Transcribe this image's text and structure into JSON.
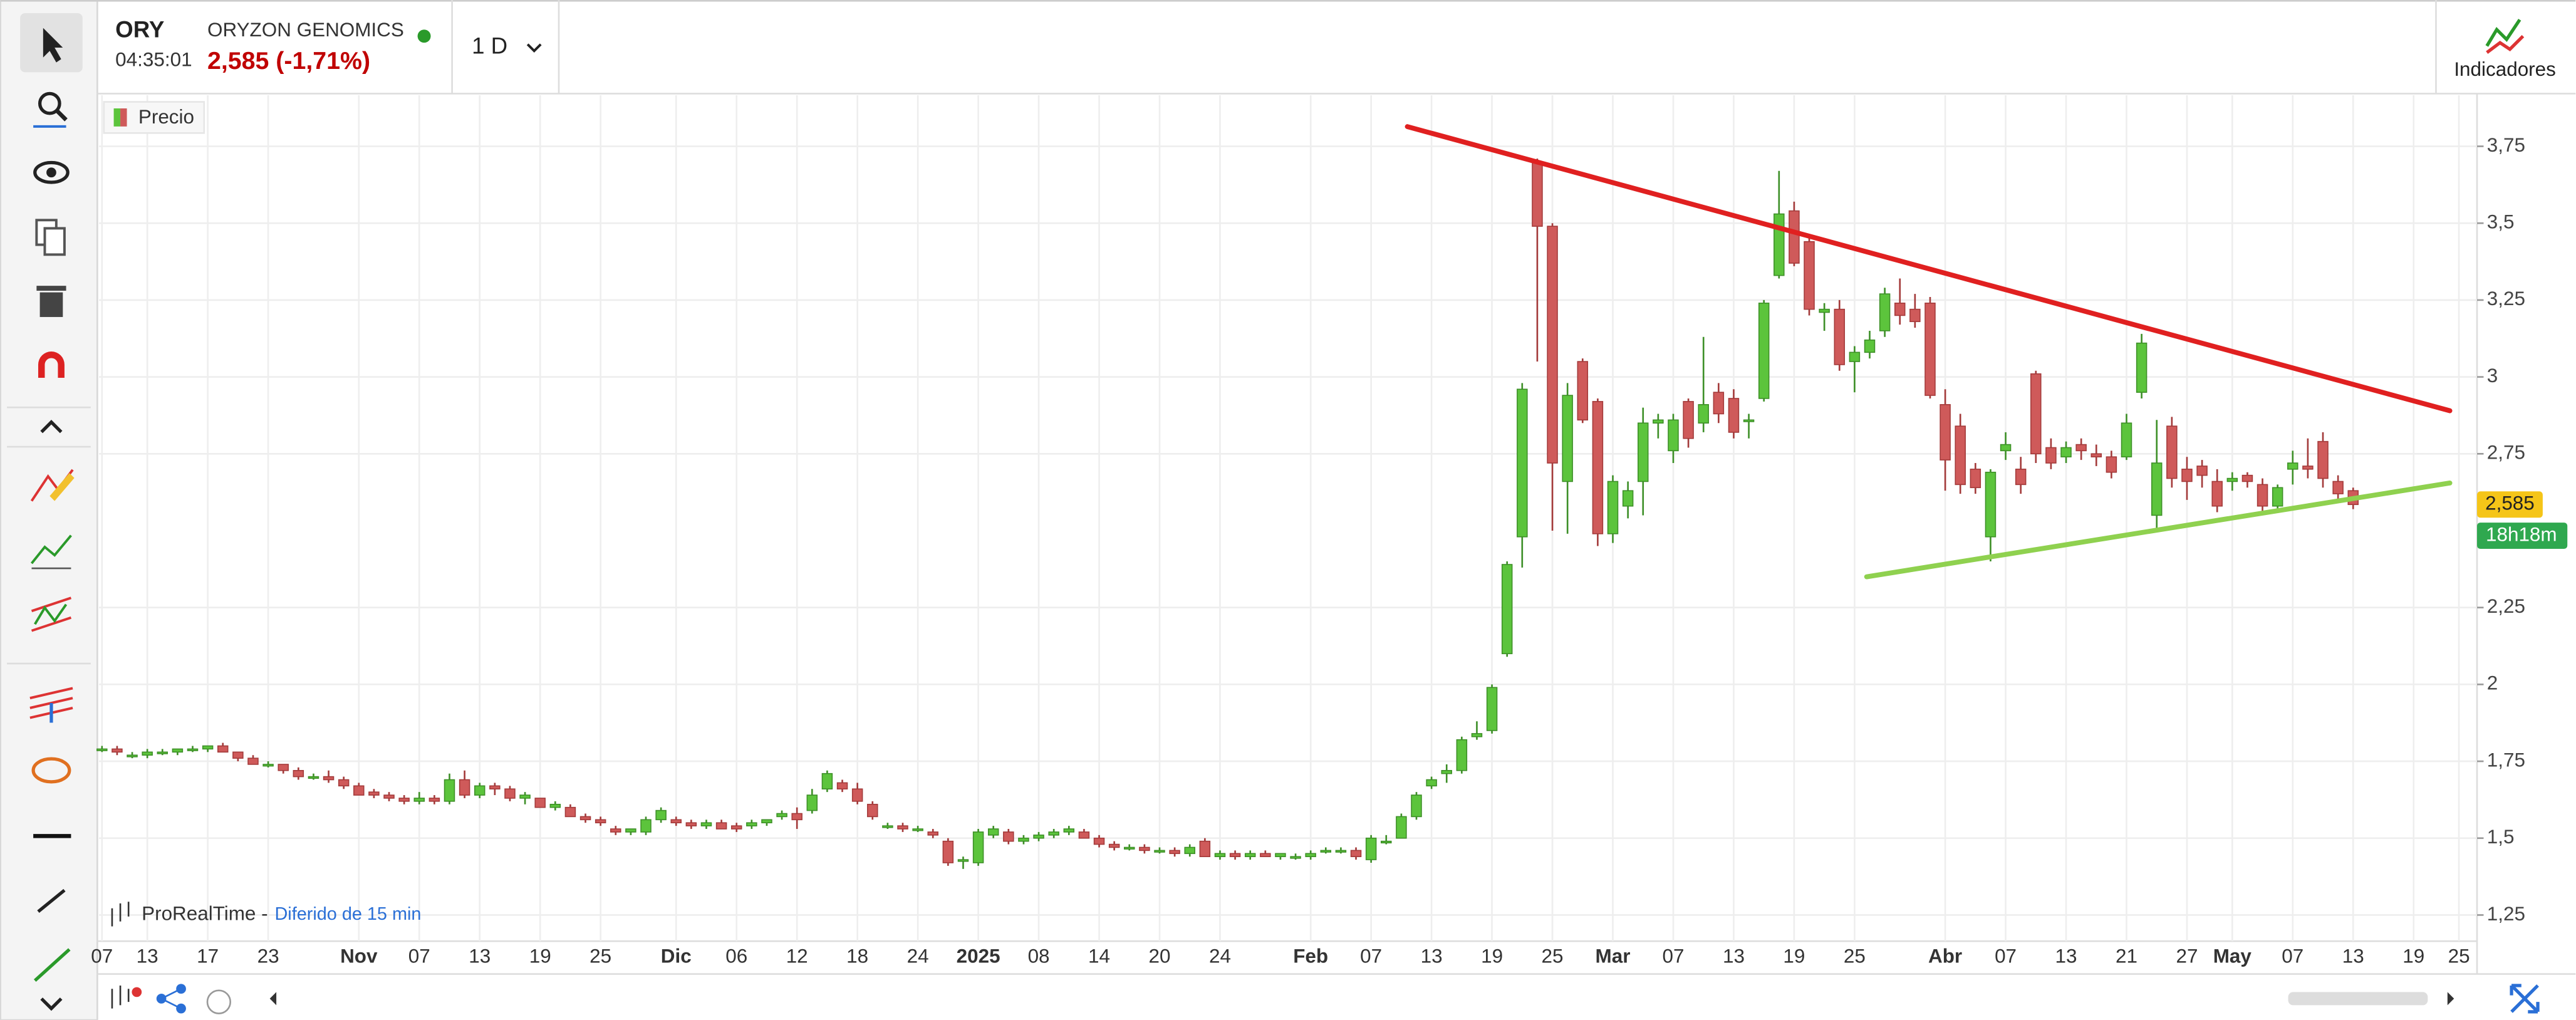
{
  "ui": {
    "symbol": "ORY",
    "time": "04:35:01",
    "company": "ORYZON GENOMICS",
    "quote": "2,585 (-1,71%)",
    "timeframe": "1 D",
    "indicators": "Indicadores",
    "brand": "ProRealTime -",
    "delay": "Diferido de 15 min"
  },
  "chart_data": {
    "type": "candlestick",
    "legend": "Precio",
    "up_color": "#5cc43c",
    "down_color": "#cf5a5a",
    "categories": [
      "07",
      null,
      null,
      "13",
      null,
      null,
      null,
      "17",
      null,
      null,
      null,
      "23",
      null,
      null,
      null,
      null,
      null,
      "Nov",
      null,
      null,
      null,
      "07",
      null,
      null,
      null,
      "13",
      null,
      null,
      null,
      "19",
      null,
      null,
      null,
      "25",
      null,
      null,
      null,
      null,
      "Dic",
      null,
      null,
      null,
      "06",
      null,
      null,
      null,
      "12",
      null,
      null,
      null,
      "18",
      null,
      null,
      null,
      "24",
      null,
      null,
      null,
      "2025",
      null,
      null,
      null,
      "08",
      null,
      null,
      null,
      "14",
      null,
      null,
      null,
      "20",
      null,
      null,
      null,
      "24",
      null,
      null,
      null,
      null,
      null,
      "Feb",
      null,
      null,
      null,
      "07",
      null,
      null,
      null,
      "13",
      null,
      null,
      null,
      "19",
      null,
      null,
      null,
      "25",
      null,
      null,
      null,
      "Mar",
      null,
      null,
      null,
      "07",
      null,
      null,
      null,
      "13",
      null,
      null,
      null,
      "19",
      null,
      null,
      null,
      "25",
      null,
      null,
      null,
      null,
      null,
      "Abr",
      null,
      null,
      null,
      "07",
      null,
      null,
      null,
      "13",
      null,
      null,
      null,
      "21",
      null,
      null,
      null,
      "27",
      null,
      null,
      "May",
      null,
      null,
      null,
      "07",
      null,
      null,
      null,
      "13",
      null,
      null,
      null,
      "19",
      null,
      null,
      "25"
    ],
    "ohlc": [
      [
        1.79,
        1.8,
        1.78,
        1.79
      ],
      [
        1.79,
        1.8,
        1.77,
        1.78
      ],
      [
        1.77,
        1.78,
        1.76,
        1.77
      ],
      [
        1.77,
        1.79,
        1.76,
        1.78
      ],
      [
        1.78,
        1.79,
        1.77,
        1.78
      ],
      [
        1.78,
        1.79,
        1.77,
        1.79
      ],
      [
        1.79,
        1.8,
        1.78,
        1.79
      ],
      [
        1.79,
        1.8,
        1.78,
        1.8
      ],
      [
        1.8,
        1.81,
        1.78,
        1.78
      ],
      [
        1.78,
        1.78,
        1.75,
        1.76
      ],
      [
        1.76,
        1.77,
        1.74,
        1.74
      ],
      [
        1.74,
        1.75,
        1.73,
        1.74
      ],
      [
        1.74,
        1.74,
        1.71,
        1.72
      ],
      [
        1.72,
        1.73,
        1.69,
        1.7
      ],
      [
        1.7,
        1.71,
        1.69,
        1.7
      ],
      [
        1.7,
        1.72,
        1.68,
        1.69
      ],
      [
        1.69,
        1.7,
        1.66,
        1.67
      ],
      [
        1.67,
        1.68,
        1.64,
        1.64
      ],
      [
        1.65,
        1.66,
        1.63,
        1.64
      ],
      [
        1.64,
        1.65,
        1.62,
        1.63
      ],
      [
        1.63,
        1.64,
        1.61,
        1.62
      ],
      [
        1.62,
        1.65,
        1.61,
        1.63
      ],
      [
        1.63,
        1.64,
        1.61,
        1.62
      ],
      [
        1.62,
        1.71,
        1.61,
        1.69
      ],
      [
        1.69,
        1.72,
        1.63,
        1.64
      ],
      [
        1.64,
        1.68,
        1.63,
        1.67
      ],
      [
        1.67,
        1.68,
        1.64,
        1.66
      ],
      [
        1.66,
        1.67,
        1.62,
        1.63
      ],
      [
        1.63,
        1.65,
        1.61,
        1.64
      ],
      [
        1.63,
        1.63,
        1.6,
        1.6
      ],
      [
        1.6,
        1.62,
        1.59,
        1.61
      ],
      [
        1.6,
        1.61,
        1.57,
        1.57
      ],
      [
        1.57,
        1.58,
        1.55,
        1.56
      ],
      [
        1.56,
        1.57,
        1.54,
        1.55
      ],
      [
        1.53,
        1.54,
        1.51,
        1.52
      ],
      [
        1.52,
        1.53,
        1.51,
        1.53
      ],
      [
        1.52,
        1.57,
        1.51,
        1.56
      ],
      [
        1.56,
        1.6,
        1.55,
        1.59
      ],
      [
        1.56,
        1.57,
        1.54,
        1.55
      ],
      [
        1.55,
        1.56,
        1.53,
        1.54
      ],
      [
        1.54,
        1.56,
        1.53,
        1.55
      ],
      [
        1.55,
        1.56,
        1.53,
        1.53
      ],
      [
        1.54,
        1.55,
        1.52,
        1.53
      ],
      [
        1.54,
        1.56,
        1.53,
        1.55
      ],
      [
        1.55,
        1.56,
        1.54,
        1.56
      ],
      [
        1.57,
        1.59,
        1.56,
        1.58
      ],
      [
        1.58,
        1.6,
        1.53,
        1.56
      ],
      [
        1.59,
        1.66,
        1.58,
        1.64
      ],
      [
        1.66,
        1.72,
        1.65,
        1.71
      ],
      [
        1.68,
        1.69,
        1.65,
        1.66
      ],
      [
        1.66,
        1.68,
        1.61,
        1.62
      ],
      [
        1.61,
        1.62,
        1.56,
        1.57
      ],
      [
        1.54,
        1.55,
        1.53,
        1.54
      ],
      [
        1.54,
        1.55,
        1.52,
        1.53
      ],
      [
        1.53,
        1.54,
        1.52,
        1.53
      ],
      [
        1.52,
        1.53,
        1.5,
        1.51
      ],
      [
        1.49,
        1.5,
        1.41,
        1.42
      ],
      [
        1.43,
        1.44,
        1.4,
        1.43
      ],
      [
        1.42,
        1.53,
        1.41,
        1.52
      ],
      [
        1.51,
        1.54,
        1.5,
        1.53
      ],
      [
        1.52,
        1.53,
        1.48,
        1.49
      ],
      [
        1.49,
        1.51,
        1.48,
        1.5
      ],
      [
        1.5,
        1.52,
        1.49,
        1.51
      ],
      [
        1.51,
        1.53,
        1.5,
        1.52
      ],
      [
        1.52,
        1.54,
        1.51,
        1.53
      ],
      [
        1.52,
        1.53,
        1.5,
        1.5
      ],
      [
        1.5,
        1.51,
        1.47,
        1.48
      ],
      [
        1.48,
        1.49,
        1.46,
        1.47
      ],
      [
        1.47,
        1.48,
        1.46,
        1.47
      ],
      [
        1.47,
        1.48,
        1.45,
        1.46
      ],
      [
        1.46,
        1.47,
        1.45,
        1.46
      ],
      [
        1.46,
        1.47,
        1.44,
        1.45
      ],
      [
        1.45,
        1.48,
        1.44,
        1.47
      ],
      [
        1.49,
        1.5,
        1.44,
        1.44
      ],
      [
        1.44,
        1.46,
        1.43,
        1.45
      ],
      [
        1.45,
        1.46,
        1.43,
        1.44
      ],
      [
        1.44,
        1.46,
        1.43,
        1.45
      ],
      [
        1.45,
        1.46,
        1.44,
        1.44
      ],
      [
        1.44,
        1.45,
        1.43,
        1.45
      ],
      [
        1.44,
        1.45,
        1.43,
        1.44
      ],
      [
        1.44,
        1.46,
        1.43,
        1.45
      ],
      [
        1.46,
        1.47,
        1.45,
        1.46
      ],
      [
        1.46,
        1.47,
        1.45,
        1.46
      ],
      [
        1.46,
        1.47,
        1.43,
        1.44
      ],
      [
        1.43,
        1.51,
        1.42,
        1.5
      ],
      [
        1.49,
        1.51,
        1.48,
        1.49
      ],
      [
        1.5,
        1.58,
        1.5,
        1.57
      ],
      [
        1.57,
        1.65,
        1.56,
        1.64
      ],
      [
        1.67,
        1.7,
        1.66,
        1.69
      ],
      [
        1.71,
        1.74,
        1.68,
        1.72
      ],
      [
        1.72,
        1.83,
        1.71,
        1.82
      ],
      [
        1.83,
        1.88,
        1.82,
        1.84
      ],
      [
        1.85,
        2.0,
        1.84,
        1.99
      ],
      [
        2.1,
        2.4,
        2.09,
        2.39
      ],
      [
        2.48,
        2.98,
        2.38,
        2.96
      ],
      [
        3.7,
        3.71,
        3.05,
        3.49
      ],
      [
        3.49,
        3.5,
        2.5,
        2.72
      ],
      [
        2.66,
        2.98,
        2.49,
        2.94
      ],
      [
        3.05,
        3.06,
        2.85,
        2.86
      ],
      [
        2.92,
        2.93,
        2.45,
        2.49
      ],
      [
        2.49,
        2.68,
        2.46,
        2.66
      ],
      [
        2.58,
        2.66,
        2.54,
        2.63
      ],
      [
        2.66,
        2.9,
        2.55,
        2.85
      ],
      [
        2.85,
        2.88,
        2.8,
        2.86
      ],
      [
        2.76,
        2.88,
        2.72,
        2.86
      ],
      [
        2.92,
        2.93,
        2.77,
        2.8
      ],
      [
        2.85,
        3.13,
        2.82,
        2.91
      ],
      [
        2.95,
        2.98,
        2.85,
        2.88
      ],
      [
        2.93,
        2.96,
        2.8,
        2.82
      ],
      [
        2.86,
        2.88,
        2.8,
        2.86
      ],
      [
        2.93,
        3.25,
        2.92,
        3.24
      ],
      [
        3.33,
        3.67,
        3.32,
        3.53
      ],
      [
        3.54,
        3.57,
        3.36,
        3.37
      ],
      [
        3.44,
        3.46,
        3.2,
        3.22
      ],
      [
        3.21,
        3.24,
        3.15,
        3.22
      ],
      [
        3.22,
        3.25,
        3.02,
        3.04
      ],
      [
        3.05,
        3.1,
        2.95,
        3.08
      ],
      [
        3.08,
        3.15,
        3.06,
        3.12
      ],
      [
        3.15,
        3.29,
        3.13,
        3.27
      ],
      [
        3.24,
        3.32,
        3.17,
        3.2
      ],
      [
        3.22,
        3.27,
        3.16,
        3.18
      ],
      [
        3.24,
        3.26,
        2.93,
        2.94
      ],
      [
        2.91,
        2.96,
        2.63,
        2.73
      ],
      [
        2.84,
        2.88,
        2.62,
        2.65
      ],
      [
        2.7,
        2.72,
        2.62,
        2.64
      ],
      [
        2.48,
        2.7,
        2.4,
        2.69
      ],
      [
        2.76,
        2.82,
        2.73,
        2.78
      ],
      [
        2.7,
        2.74,
        2.62,
        2.65
      ],
      [
        3.01,
        3.02,
        2.72,
        2.75
      ],
      [
        2.77,
        2.8,
        2.7,
        2.72
      ],
      [
        2.74,
        2.79,
        2.72,
        2.77
      ],
      [
        2.78,
        2.8,
        2.73,
        2.76
      ],
      [
        2.75,
        2.78,
        2.71,
        2.74
      ],
      [
        2.74,
        2.76,
        2.67,
        2.69
      ],
      [
        2.74,
        2.88,
        2.73,
        2.85
      ],
      [
        2.95,
        3.14,
        2.93,
        3.11
      ],
      [
        2.55,
        2.86,
        2.5,
        2.72
      ],
      [
        2.84,
        2.87,
        2.64,
        2.67
      ],
      [
        2.7,
        2.74,
        2.6,
        2.66
      ],
      [
        2.71,
        2.73,
        2.64,
        2.68
      ],
      [
        2.66,
        2.7,
        2.56,
        2.58
      ],
      [
        2.66,
        2.69,
        2.63,
        2.67
      ],
      [
        2.68,
        2.69,
        2.64,
        2.66
      ],
      [
        2.65,
        2.67,
        2.56,
        2.58
      ],
      [
        2.58,
        2.65,
        2.57,
        2.64
      ],
      [
        2.7,
        2.76,
        2.65,
        2.72
      ],
      [
        2.71,
        2.8,
        2.67,
        2.7
      ],
      [
        2.79,
        2.82,
        2.64,
        2.67
      ],
      [
        2.66,
        2.68,
        2.6,
        2.62
      ],
      [
        2.63,
        2.64,
        2.57,
        2.585
      ],
      null,
      null,
      null,
      null,
      null,
      null,
      null
    ],
    "xlim": [
      -0.2,
      157.2
    ],
    "ylim": [
      1.165,
      3.916
    ],
    "yticks": [
      {
        "value": 3.75,
        "label": "3,75"
      },
      {
        "value": 3.5,
        "label": "3,5"
      },
      {
        "value": 3.25,
        "label": "3,25"
      },
      3,
      {
        "value": 2.75,
        "label": "2,75"
      },
      {
        "value": 2.25,
        "label": "2,25"
      },
      2,
      {
        "value": 1.75,
        "label": "1,75"
      },
      {
        "value": 1.5,
        "label": "1,5"
      },
      {
        "value": 1.25,
        "label": "1,25"
      }
    ],
    "grid": true,
    "trendlines": [
      {
        "color": "#e02020",
        "x": [
          86.4,
          155.4
        ],
        "y": [
          3.814,
          2.89
        ]
      },
      {
        "color": "#8fd14f",
        "x": [
          116.8,
          155.4
        ],
        "y": [
          2.35,
          2.655
        ]
      }
    ],
    "last_price": {
      "value": 2.585,
      "label": "2,585"
    },
    "countdown": "18h18m"
  }
}
